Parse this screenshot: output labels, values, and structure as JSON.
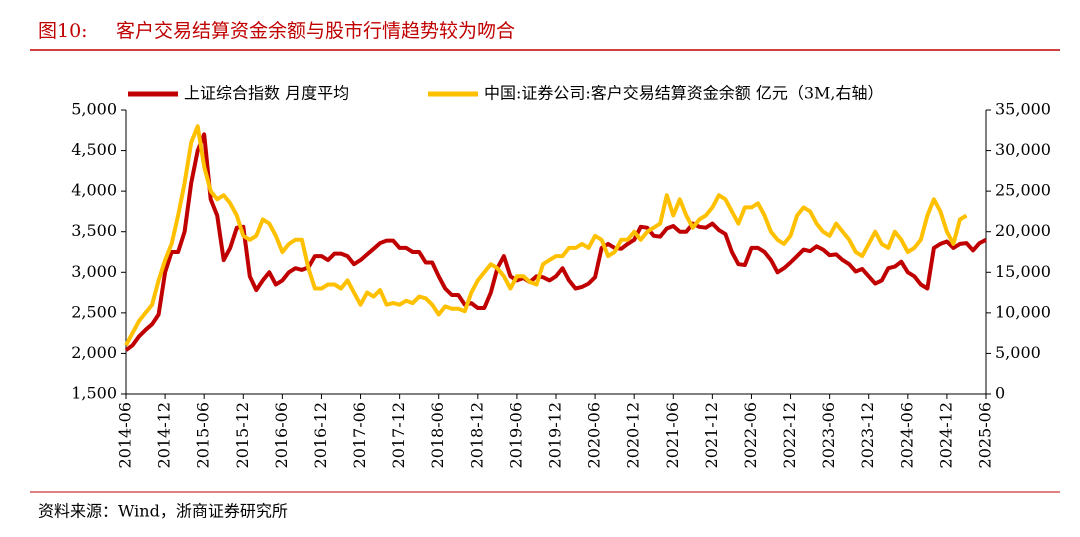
{
  "figure_label": "图10:",
  "chart_data": {
    "type": "line",
    "title": "客户交易结算资金余额与股市行情趋势较为吻合",
    "categories": [
      "2014-06",
      null,
      null,
      null,
      null,
      null,
      "2014-12",
      null,
      null,
      null,
      null,
      null,
      "2015-06",
      null,
      null,
      null,
      null,
      null,
      "2015-12",
      null,
      null,
      null,
      null,
      null,
      "2016-06",
      null,
      null,
      null,
      null,
      null,
      "2016-12",
      null,
      null,
      null,
      null,
      null,
      "2017-06",
      null,
      null,
      null,
      null,
      null,
      "2017-12",
      null,
      null,
      null,
      null,
      null,
      "2018-06",
      null,
      null,
      null,
      null,
      null,
      "2018-12",
      null,
      null,
      null,
      null,
      null,
      "2019-06",
      null,
      null,
      null,
      null,
      null,
      "2019-12",
      null,
      null,
      null,
      null,
      null,
      "2020-06",
      null,
      null,
      null,
      null,
      null,
      "2020-12",
      null,
      null,
      null,
      null,
      null,
      "2021-06",
      null,
      null,
      null,
      null,
      null,
      "2021-12",
      null,
      null,
      null,
      null,
      null,
      "2022-06",
      null,
      null,
      null,
      null,
      null,
      "2022-12",
      null,
      null,
      null,
      null,
      null,
      "2023-06",
      null,
      null,
      null,
      null,
      null,
      "2023-12",
      null,
      null,
      null,
      null,
      null,
      "2024-06",
      null,
      null,
      null,
      null,
      null,
      "2024-12",
      null,
      null,
      null,
      null,
      null,
      "2025-06"
    ],
    "series": [
      {
        "name": "上证综合指数 月度平均",
        "color": "#c00000",
        "values": [
          2040,
          2100,
          2210,
          2290,
          2360,
          2480,
          3000,
          3250,
          3250,
          3500,
          4100,
          4500,
          4700,
          3900,
          3700,
          3150,
          3300,
          3550,
          3560,
          2950,
          2780,
          2900,
          3000,
          2850,
          2900,
          3000,
          3050,
          3030,
          3060,
          3200,
          3200,
          3150,
          3230,
          3230,
          3200,
          3100,
          3150,
          3220,
          3290,
          3360,
          3390,
          3390,
          3300,
          3300,
          3250,
          3250,
          3120,
          3120,
          2950,
          2800,
          2720,
          2720,
          2600,
          2620,
          2560,
          2560,
          2750,
          3050,
          3200,
          2950,
          2900,
          2930,
          2880,
          2950,
          2940,
          2900,
          2950,
          3050,
          2900,
          2800,
          2820,
          2860,
          2940,
          3300,
          3350,
          3300,
          3290,
          3350,
          3400,
          3560,
          3550,
          3450,
          3440,
          3540,
          3570,
          3500,
          3500,
          3600,
          3560,
          3550,
          3600,
          3520,
          3470,
          3250,
          3100,
          3090,
          3300,
          3300,
          3250,
          3150,
          3000,
          3050,
          3120,
          3200,
          3280,
          3260,
          3320,
          3280,
          3210,
          3220,
          3150,
          3100,
          3010,
          3040,
          2950,
          2860,
          2900,
          3050,
          3070,
          3130,
          3000,
          2950,
          2850,
          2800,
          3300,
          3350,
          3380,
          3300,
          3350,
          3360,
          3270,
          3360,
          3400
        ]
      },
      {
        "name": "中国:证券公司:客户交易结算资金余额 亿元（3M,右轴）",
        "color": "#ffc000",
        "axis": "y2",
        "values": [
          6000,
          7500,
          9000,
          10000,
          11000,
          14000,
          16500,
          18500,
          22000,
          26000,
          31000,
          33000,
          28000,
          25000,
          24000,
          24500,
          23500,
          22000,
          19500,
          19000,
          19500,
          21500,
          21000,
          19500,
          17500,
          18500,
          19000,
          19000,
          15500,
          13000,
          13000,
          13500,
          13500,
          13000,
          14000,
          12500,
          11000,
          12500,
          12000,
          12800,
          11000,
          11200,
          11000,
          11500,
          11200,
          12000,
          11800,
          11000,
          9800,
          10800,
          10500,
          10500,
          10200,
          12500,
          14000,
          15000,
          16000,
          15500,
          14500,
          13000,
          14500,
          14500,
          13800,
          13500,
          16000,
          16500,
          17000,
          17000,
          18000,
          18000,
          18500,
          18000,
          19500,
          19000,
          17000,
          17500,
          19000,
          19000,
          20000,
          19000,
          20000,
          20500,
          21000,
          24500,
          22000,
          24000,
          22000,
          20500,
          21500,
          22000,
          23000,
          24500,
          24000,
          22500,
          21000,
          23000,
          23000,
          23500,
          22000,
          20000,
          19000,
          18500,
          19500,
          22000,
          23000,
          22500,
          21000,
          20000,
          19500,
          21000,
          20000,
          19000,
          17500,
          17000,
          18500,
          20000,
          18500,
          18000,
          20000,
          19000,
          17500,
          18000,
          19000,
          22000,
          24000,
          22500,
          20000,
          18500,
          21500,
          22000,
          null,
          null,
          null
        ]
      }
    ],
    "ylim": [
      1500,
      5000
    ],
    "yticks": [
      {
        "value": 1500,
        "label": "1,500"
      },
      {
        "value": 2000,
        "label": "2,000"
      },
      {
        "value": 2500,
        "label": "2,500"
      },
      {
        "value": 3000,
        "label": "3,000"
      },
      {
        "value": 3500,
        "label": "3,500"
      },
      {
        "value": 4000,
        "label": "4,000"
      },
      {
        "value": 4500,
        "label": "4,500"
      },
      {
        "value": 5000,
        "label": "5,000"
      }
    ],
    "y2lim": [
      0,
      35000
    ],
    "y2ticks": [
      0,
      {
        "value": 5000,
        "label": "5,000"
      },
      {
        "value": 10000,
        "label": "10,000"
      },
      {
        "value": 15000,
        "label": "15,000"
      },
      {
        "value": 20000,
        "label": "20,000"
      },
      {
        "value": 25000,
        "label": "25,000"
      },
      {
        "value": 30000,
        "label": "30,000"
      },
      {
        "value": 35000,
        "label": "35,000"
      }
    ],
    "legend": "top",
    "grid": false
  },
  "source": "资料来源：Wind，浙商证券研究所"
}
